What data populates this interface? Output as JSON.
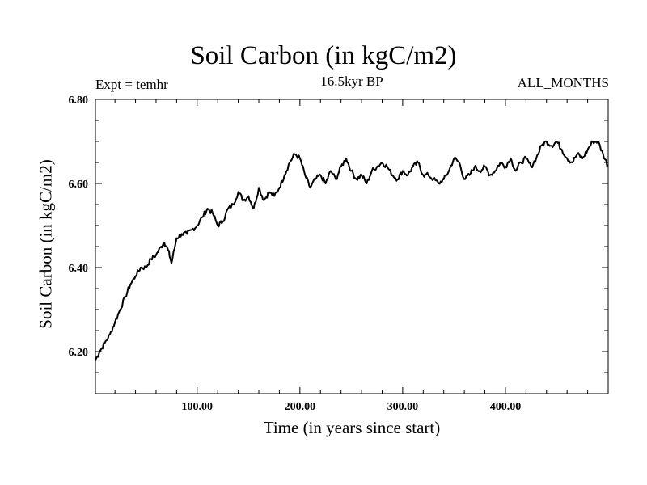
{
  "chart_data": {
    "type": "line",
    "title": "Soil Carbon (in kgC/m2)",
    "subtitle": "16.5kyr BP",
    "experiment_label": "Expt = temhr",
    "months_label": "ALL_MONTHS",
    "xlabel": "Time (in years since start)",
    "ylabel": "Soil Carbon (in kgC/m2)",
    "xlim": [
      1,
      500
    ],
    "ylim": [
      6.1,
      6.8
    ],
    "x_ticks": [
      {
        "value": 100,
        "label": "100.00"
      },
      {
        "value": 200,
        "label": "200.00"
      },
      {
        "value": 300,
        "label": "300.00"
      },
      {
        "value": 400,
        "label": "400.00"
      }
    ],
    "y_ticks": [
      {
        "value": 6.2,
        "label": "6.20"
      },
      {
        "value": 6.4,
        "label": "6.40"
      },
      {
        "value": 6.6,
        "label": "6.60"
      },
      {
        "value": 6.8,
        "label": "6.80"
      }
    ],
    "x_minor_step": 20,
    "y_minor_step": 0.05,
    "grid": false,
    "series": [
      {
        "name": "Soil Carbon",
        "color": "#000000",
        "x": [
          1,
          5,
          10,
          15,
          20,
          25,
          30,
          35,
          40,
          45,
          50,
          55,
          60,
          65,
          68,
          72,
          75,
          80,
          85,
          90,
          95,
          100,
          105,
          110,
          115,
          120,
          125,
          130,
          135,
          140,
          145,
          150,
          155,
          160,
          165,
          170,
          175,
          180,
          185,
          190,
          195,
          200,
          205,
          210,
          215,
          220,
          225,
          230,
          235,
          240,
          245,
          250,
          255,
          260,
          265,
          270,
          275,
          280,
          285,
          290,
          295,
          300,
          305,
          310,
          315,
          320,
          325,
          330,
          335,
          340,
          345,
          350,
          355,
          360,
          365,
          370,
          375,
          380,
          385,
          390,
          395,
          400,
          405,
          410,
          415,
          420,
          425,
          430,
          435,
          440,
          445,
          450,
          455,
          460,
          465,
          470,
          475,
          480,
          485,
          490,
          495,
          500
        ],
        "values": [
          6.18,
          6.2,
          6.22,
          6.24,
          6.27,
          6.3,
          6.33,
          6.36,
          6.38,
          6.4,
          6.4,
          6.42,
          6.43,
          6.45,
          6.46,
          6.44,
          6.41,
          6.47,
          6.48,
          6.48,
          6.49,
          6.5,
          6.52,
          6.54,
          6.53,
          6.5,
          6.51,
          6.54,
          6.55,
          6.58,
          6.56,
          6.57,
          6.54,
          6.59,
          6.56,
          6.58,
          6.57,
          6.59,
          6.62,
          6.65,
          6.67,
          6.66,
          6.62,
          6.59,
          6.61,
          6.62,
          6.6,
          6.63,
          6.61,
          6.64,
          6.66,
          6.63,
          6.61,
          6.62,
          6.6,
          6.63,
          6.64,
          6.65,
          6.64,
          6.62,
          6.61,
          6.63,
          6.62,
          6.64,
          6.65,
          6.62,
          6.62,
          6.61,
          6.6,
          6.61,
          6.63,
          6.66,
          6.65,
          6.61,
          6.62,
          6.64,
          6.63,
          6.64,
          6.62,
          6.63,
          6.65,
          6.64,
          6.66,
          6.63,
          6.65,
          6.66,
          6.64,
          6.66,
          6.69,
          6.7,
          6.69,
          6.7,
          6.68,
          6.66,
          6.65,
          6.67,
          6.66,
          6.68,
          6.7,
          6.7,
          6.67,
          6.64
        ]
      }
    ]
  }
}
